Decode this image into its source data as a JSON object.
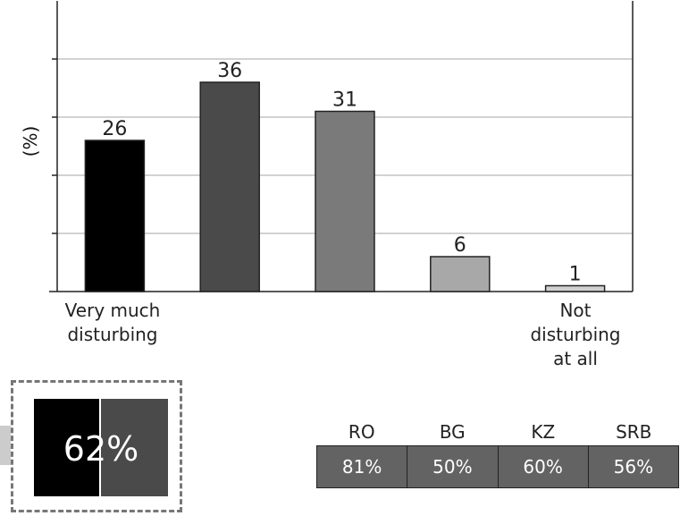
{
  "chart_data": {
    "type": "bar",
    "categories": [
      "Very much disturbing",
      "",
      "",
      "",
      "Not disturbing at all"
    ],
    "values": [
      26,
      36,
      31,
      6,
      1
    ],
    "colors": [
      "#000000",
      "#4a4a4a",
      "#7a7a7a",
      "#a8a8a8",
      "#d0d0d0"
    ],
    "ylabel": "(%)",
    "ylim": [
      0,
      50
    ],
    "grid": true
  },
  "category_labels": {
    "left_line1": "Very much",
    "left_line2": "disturbing",
    "right_line1": "Not",
    "right_line2": "disturbing",
    "right_line3": "at all"
  },
  "summary": {
    "value": "62%",
    "colors": [
      "#000000",
      "#4a4a4a"
    ]
  },
  "countries": [
    {
      "code": "RO",
      "value": "81%"
    },
    {
      "code": "BG",
      "value": "50%"
    },
    {
      "code": "KZ",
      "value": "60%"
    },
    {
      "code": "SRB",
      "value": "56%"
    }
  ],
  "country_cell_color": "#636363"
}
